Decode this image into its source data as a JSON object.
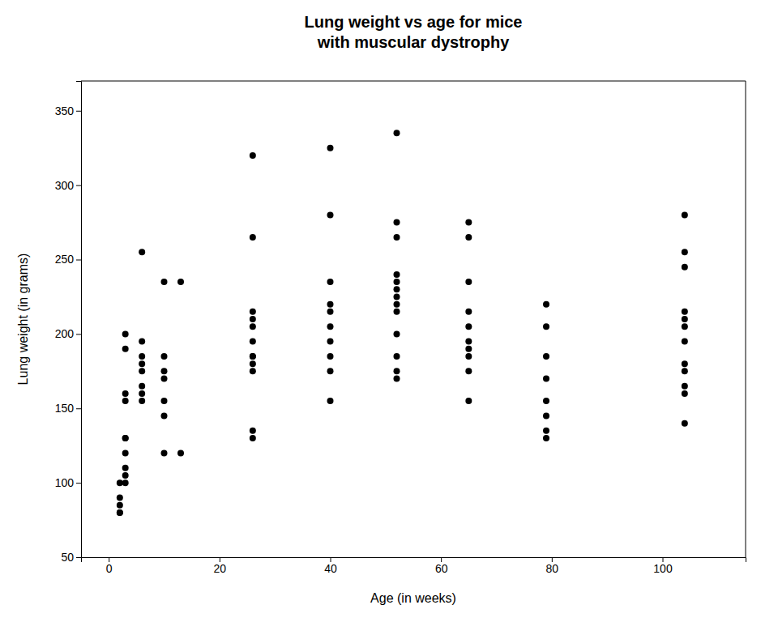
{
  "chart_data": {
    "type": "scatter",
    "title": "Lung weight vs age for mice\nwith muscular dystrophy",
    "xlabel": "Age (in weeks)",
    "ylabel": "Lung weight (in grams)",
    "color": "#000000",
    "grid": false,
    "xlim": [
      -5,
      115
    ],
    "ylim": [
      50,
      370
    ],
    "xticks": [
      0,
      20,
      40,
      60,
      80,
      100
    ],
    "yticks": [
      50,
      100,
      150,
      200,
      250,
      300,
      350
    ],
    "x": [
      2,
      2,
      2,
      2,
      2,
      3,
      3,
      3,
      3,
      3,
      3,
      3,
      3,
      3,
      3,
      6,
      6,
      6,
      6,
      6,
      6,
      6,
      6,
      10,
      10,
      10,
      10,
      10,
      10,
      10,
      13,
      13,
      26,
      26,
      26,
      26,
      26,
      26,
      26,
      26,
      26,
      26,
      26,
      26,
      40,
      40,
      40,
      40,
      40,
      40,
      40,
      40,
      40,
      40,
      52,
      52,
      52,
      52,
      52,
      52,
      52,
      52,
      52,
      52,
      52,
      52,
      52,
      65,
      65,
      65,
      65,
      65,
      65,
      65,
      65,
      65,
      65,
      79,
      79,
      79,
      79,
      79,
      79,
      79,
      79,
      104,
      104,
      104,
      104,
      104,
      104,
      104,
      104,
      104,
      104,
      104,
      104
    ],
    "y": [
      80,
      80,
      85,
      90,
      100,
      100,
      105,
      110,
      120,
      130,
      130,
      155,
      160,
      190,
      200,
      155,
      160,
      165,
      175,
      180,
      185,
      195,
      255,
      120,
      145,
      155,
      170,
      175,
      185,
      235,
      120,
      235,
      130,
      135,
      175,
      180,
      185,
      185,
      195,
      205,
      210,
      215,
      265,
      320,
      155,
      175,
      185,
      195,
      205,
      215,
      220,
      235,
      280,
      325,
      170,
      175,
      185,
      200,
      215,
      220,
      225,
      230,
      235,
      240,
      265,
      275,
      335,
      155,
      175,
      185,
      190,
      195,
      205,
      215,
      235,
      265,
      275,
      130,
      135,
      145,
      155,
      170,
      185,
      205,
      220,
      140,
      160,
      165,
      175,
      180,
      195,
      205,
      210,
      215,
      245,
      255,
      280
    ]
  }
}
